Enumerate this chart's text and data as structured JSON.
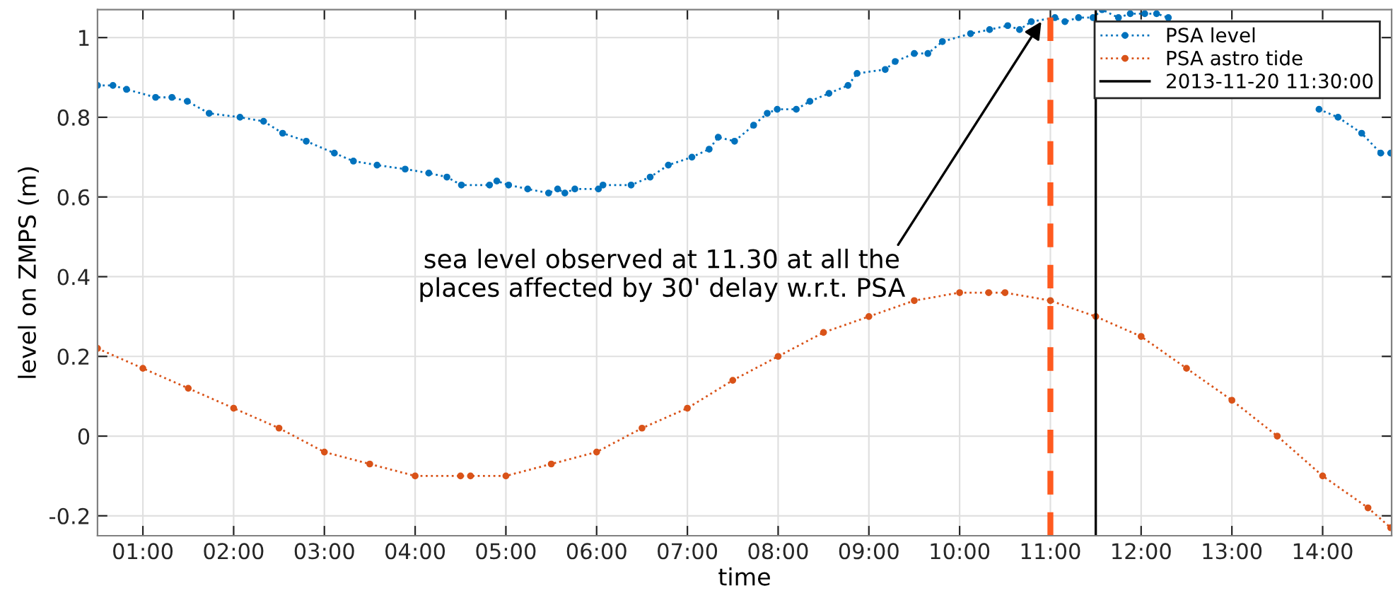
{
  "chart_data": {
    "type": "line",
    "xlabel": "time",
    "ylabel": "level on ZMPS (m)",
    "xlim": [
      0.5,
      14.76
    ],
    "ylim": [
      -0.25,
      1.07
    ],
    "xticks": [
      {
        "value": 1,
        "label": "01:00"
      },
      {
        "value": 2,
        "label": "02:00"
      },
      {
        "value": 3,
        "label": "03:00"
      },
      {
        "value": 4,
        "label": "04:00"
      },
      {
        "value": 5,
        "label": "05:00"
      },
      {
        "value": 6,
        "label": "06:00"
      },
      {
        "value": 7,
        "label": "07:00"
      },
      {
        "value": 8,
        "label": "08:00"
      },
      {
        "value": 9,
        "label": "09:00"
      },
      {
        "value": 10,
        "label": "10:00"
      },
      {
        "value": 11,
        "label": "11:00"
      },
      {
        "value": 12,
        "label": "12:00"
      },
      {
        "value": 13,
        "label": "13:00"
      },
      {
        "value": 14,
        "label": "14:00"
      }
    ],
    "yticks": [
      -0.2,
      0,
      0.2,
      0.4,
      0.6,
      0.8,
      1
    ],
    "grid": true,
    "legend": "top right",
    "marker": "circle",
    "line_style": "dotted",
    "series": [
      {
        "name": "PSA level",
        "color": "#0072bd",
        "x": [
          0.5,
          0.67,
          0.82,
          1.14,
          1.32,
          1.49,
          1.73,
          2.07,
          2.33,
          2.54,
          2.8,
          3.11,
          3.32,
          3.58,
          3.89,
          4.15,
          4.35,
          4.51,
          4.82,
          4.9,
          5.03,
          5.24,
          5.47,
          5.57,
          5.65,
          5.76,
          6.02,
          6.07,
          6.38,
          6.59,
          6.79,
          7.05,
          7.24,
          7.34,
          7.52,
          7.73,
          7.88,
          7.99,
          8.2,
          8.35,
          8.56,
          8.77,
          8.87,
          9.18,
          9.29,
          9.5,
          9.65,
          9.81,
          10.12,
          10.33,
          10.53,
          10.66,
          10.79,
          11.05,
          11.16,
          11.31,
          11.47,
          11.57,
          11.75,
          11.88,
          12.04,
          12.17,
          12.3,
          12.51,
          13.2,
          13.96,
          14.17,
          14.43,
          14.64,
          14.75
        ],
        "values": [
          0.88,
          0.88,
          0.87,
          0.85,
          0.85,
          0.84,
          0.81,
          0.8,
          0.79,
          0.76,
          0.74,
          0.71,
          0.69,
          0.68,
          0.67,
          0.66,
          0.65,
          0.63,
          0.63,
          0.64,
          0.63,
          0.62,
          0.61,
          0.62,
          0.61,
          0.62,
          0.62,
          0.63,
          0.63,
          0.65,
          0.68,
          0.7,
          0.72,
          0.75,
          0.74,
          0.78,
          0.81,
          0.82,
          0.82,
          0.84,
          0.86,
          0.88,
          0.91,
          0.92,
          0.94,
          0.96,
          0.96,
          0.99,
          1.01,
          1.02,
          1.03,
          1.02,
          1.04,
          1.05,
          1.04,
          1.05,
          1.05,
          1.07,
          1.05,
          1.06,
          1.06,
          1.06,
          1.05,
          null,
          null,
          0.82,
          0.8,
          0.76,
          0.71,
          0.71
        ]
      },
      {
        "name": "PSA astro tide",
        "color": "#d95319",
        "x": [
          0.5,
          1,
          1.5,
          2,
          2.5,
          3,
          3.5,
          4,
          4.5,
          4.61,
          5,
          5.5,
          6,
          6.5,
          7,
          7.5,
          8,
          8.5,
          9,
          9.5,
          10,
          10.32,
          10.5,
          11,
          11.5,
          12,
          12.5,
          13,
          13.5,
          14,
          14.5,
          14.75
        ],
        "values": [
          0.22,
          0.17,
          0.12,
          0.07,
          0.02,
          -0.04,
          -0.07,
          -0.1,
          -0.1,
          -0.1,
          -0.1,
          -0.07,
          -0.04,
          0.02,
          0.07,
          0.14,
          0.2,
          0.26,
          0.3,
          0.34,
          0.36,
          0.36,
          0.36,
          0.34,
          0.3,
          0.25,
          0.17,
          0.09,
          0.0,
          -0.1,
          -0.18,
          -0.23
        ]
      }
    ],
    "ref_lines": [
      {
        "axis": "x",
        "value": 11,
        "color": "#ff5a1f",
        "line_style": "dashed"
      },
      {
        "axis": "x",
        "value": 11.5,
        "label": "2013-11-20 11:30:00",
        "color": "#000000",
        "line_style": "solid"
      }
    ],
    "annotations": [
      {
        "text": "sea level observed at 11.30 at all the\nplaces affected by 30' delay w.r.t. PSA",
        "x": 10.9,
        "y": 1.04
      }
    ]
  }
}
